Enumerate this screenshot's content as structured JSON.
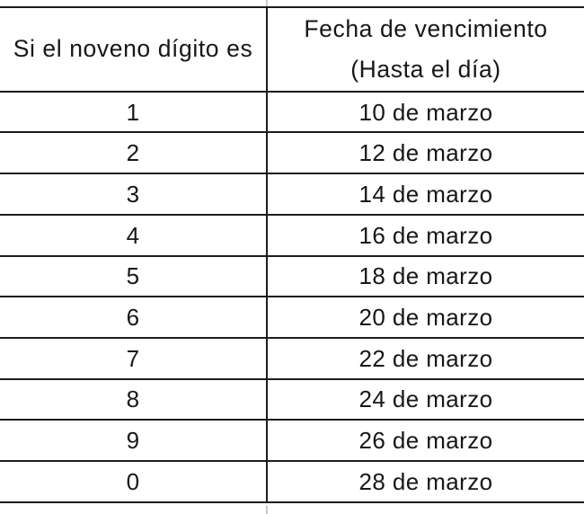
{
  "table": {
    "header": {
      "col1": "Si el noveno dígito es",
      "col2_line1": "Fecha de vencimiento",
      "col2_line2": "(Hasta el día)"
    },
    "rows": [
      {
        "digit": "1",
        "date": "10 de marzo"
      },
      {
        "digit": "2",
        "date": "12 de marzo"
      },
      {
        "digit": "3",
        "date": "14 de marzo"
      },
      {
        "digit": "4",
        "date": "16 de marzo"
      },
      {
        "digit": "5",
        "date": "18 de marzo"
      },
      {
        "digit": "6",
        "date": "20 de marzo"
      },
      {
        "digit": "7",
        "date": "22 de marzo"
      },
      {
        "digit": "8",
        "date": "24 de marzo"
      },
      {
        "digit": "9",
        "date": "26 de marzo"
      },
      {
        "digit": "0",
        "date": "28 de marzo"
      }
    ]
  },
  "colors": {
    "border": "#1c1c1c",
    "text": "#171717",
    "background": "#ffffff",
    "cropped_divider_stub": "#c7c9cf"
  }
}
